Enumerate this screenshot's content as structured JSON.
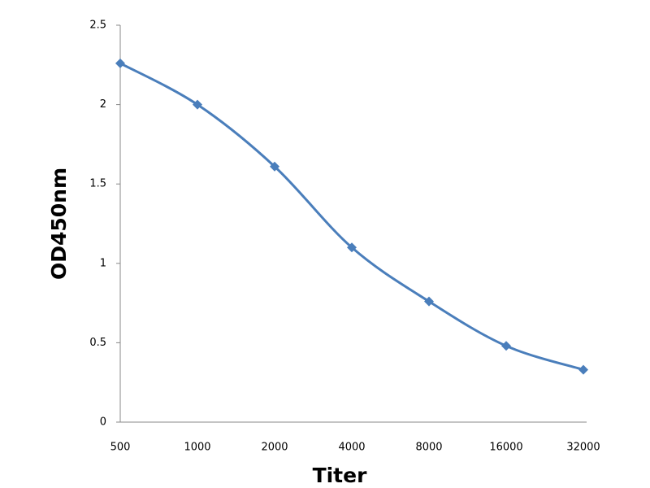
{
  "chart_data": {
    "type": "line",
    "categories": [
      "500",
      "1000",
      "2000",
      "4000",
      "8000",
      "16000",
      "32000"
    ],
    "values": [
      2.26,
      2.0,
      1.61,
      1.1,
      0.76,
      0.48,
      0.33
    ],
    "color": "#4a7ebb",
    "x_label": "Titer",
    "y_label": "OD450nm",
    "ylim": [
      0,
      2.5
    ],
    "yticks": [
      0,
      0.5,
      1,
      1.5,
      2,
      2.5
    ],
    "grid": false,
    "smooth": true
  }
}
